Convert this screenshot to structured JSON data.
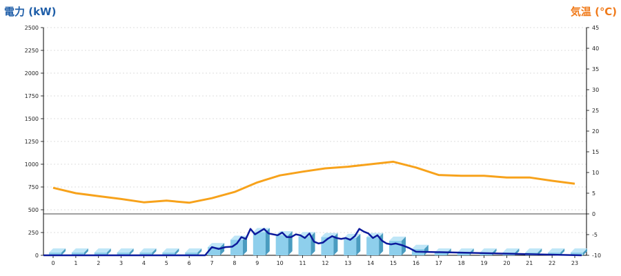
{
  "colors": {
    "left_axis_title": "#1f5ea8",
    "right_axis_title": "#f07a1a",
    "temperature_line": "#f7a21b",
    "power_line": "#0c1a9c",
    "bar_front": "#8ecfec",
    "bar_side": "#4a9cc0",
    "bar_top": "#bfe6f7",
    "grid": "#bbbbbb"
  },
  "chart_data": {
    "type": "bar+line",
    "ylabel": "電力 (kW)",
    "y2label": "気温 (℃)",
    "left_axis": {
      "ticks": [
        "2500",
        "2250",
        "2000",
        "1750",
        "1500",
        "1250",
        "1000",
        "750",
        "500",
        "250",
        "0"
      ],
      "ylim": [
        0,
        2500
      ]
    },
    "right_axis": {
      "ticks": [
        "45",
        "40",
        "35",
        "30",
        "25",
        "20",
        "15",
        "10",
        "5",
        "0",
        "-5",
        "-10"
      ],
      "ylim": [
        -10,
        45
      ]
    },
    "categories": [
      "0",
      "1",
      "2",
      "3",
      "4",
      "5",
      "6",
      "7",
      "8",
      "9",
      "10",
      "11",
      "12",
      "13",
      "14",
      "15",
      "16",
      "17",
      "18",
      "19",
      "20",
      "21",
      "22",
      "23"
    ],
    "bar_values": [
      30,
      30,
      30,
      30,
      30,
      30,
      30,
      90,
      170,
      255,
      220,
      210,
      200,
      190,
      200,
      160,
      70,
      30,
      30,
      30,
      30,
      30,
      30,
      30
    ],
    "power_line": {
      "x": [
        6.7,
        7.0,
        7.3,
        7.6,
        7.9,
        8.1,
        8.3,
        8.5,
        8.7,
        8.9,
        9.1,
        9.3,
        9.5,
        9.7,
        9.9,
        10.1,
        10.3,
        10.5,
        10.7,
        10.9,
        11.1,
        11.3,
        11.5,
        11.7,
        11.9,
        12.1,
        12.3,
        12.5,
        12.7,
        12.9,
        13.1,
        13.3,
        13.5,
        13.7,
        13.9,
        14.1,
        14.3,
        14.5,
        14.7,
        14.9,
        15.1,
        15.4,
        15.7,
        16.0
      ],
      "y": [
        0,
        90,
        70,
        90,
        95,
        130,
        200,
        180,
        290,
        230,
        260,
        290,
        240,
        230,
        220,
        250,
        200,
        200,
        230,
        220,
        190,
        240,
        150,
        130,
        140,
        180,
        210,
        190,
        180,
        190,
        170,
        210,
        290,
        260,
        240,
        190,
        220,
        160,
        130,
        120,
        130,
        110,
        80,
        40
      ]
    },
    "temperature": [
      6.3,
      5.0,
      4.3,
      3.6,
      2.8,
      3.2,
      2.7,
      3.8,
      5.3,
      7.6,
      9.3,
      10.2,
      11.0,
      11.4,
      12.0,
      12.6,
      11.2,
      9.4,
      9.2,
      9.2,
      8.8,
      8.8,
      8.0,
      7.3
    ],
    "grid": true
  }
}
